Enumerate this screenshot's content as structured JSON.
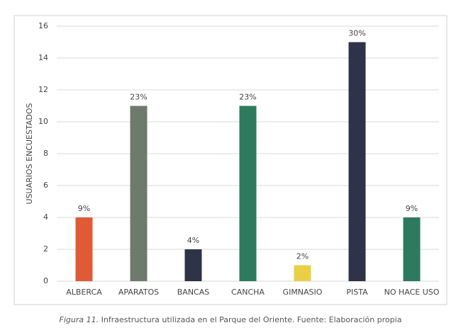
{
  "chart_data": {
    "type": "bar",
    "y_label": "USUARIOS ENCUESTADOS",
    "categories": [
      "ALBERCA",
      "APARATOS",
      "BANCAS",
      "CANCHA",
      "GIMNASIO",
      "PISTA",
      "NO HACE USO"
    ],
    "values": [
      4,
      11,
      2,
      11,
      1,
      15,
      4
    ],
    "share_labels": [
      "9%",
      "23%",
      "4%",
      "23%",
      "2%",
      "30%",
      "9%"
    ],
    "colors": [
      "#e05a35",
      "#6e7b6c",
      "#2e3348",
      "#2e7a5e",
      "#e8cf45",
      "#2e3348",
      "#2e7a5e"
    ],
    "ylim": [
      0,
      16
    ],
    "yticks": [
      0,
      2,
      4,
      6,
      8,
      10,
      12,
      14,
      16
    ],
    "grid": true
  },
  "caption": {
    "figure": "Figura 11.",
    "text": "Infraestructura utilizada en el Parque del Oriente. Fuente: Elaboración propia"
  }
}
